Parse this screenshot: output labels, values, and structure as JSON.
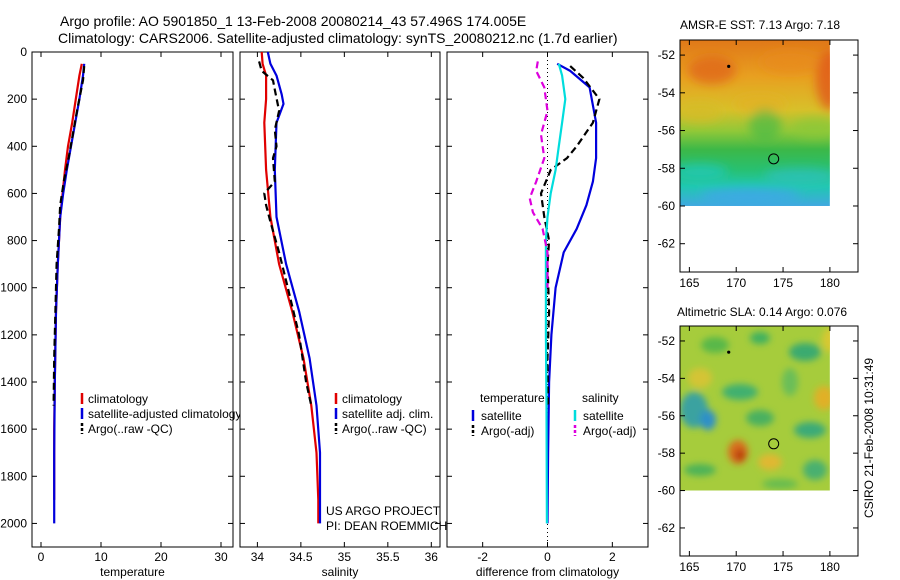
{
  "title": {
    "line1": "Argo profile: AO 5901850_1 13-Feb-2008 20080214_43 57.496S 174.005E",
    "line2": "Climatology: CARS2006. Satellite-adjusted climatology: synTS_20080212.nc (1.7d earlier)"
  },
  "credits": {
    "project": "US ARGO PROJECT",
    "pi": "PI: DEAN ROEMMICH"
  },
  "side_stamp": "CSIRO 21-Feb-2008 10:31:49",
  "colors": {
    "red": "#e00000",
    "blue": "#0000dd",
    "black": "#000000",
    "cyan": "#00dddd",
    "magenta": "#dd00dd"
  },
  "chart_data": [
    {
      "id": "temperature",
      "type": "line",
      "xlabel": "temperature",
      "xlim": [
        -1.5,
        32
      ],
      "ylim": [
        2100,
        0
      ],
      "xticks": [
        0,
        10,
        20,
        30
      ],
      "yticks": [
        0,
        200,
        400,
        600,
        800,
        1000,
        1200,
        1400,
        1600,
        1800,
        2000
      ],
      "legend": [
        {
          "label": "climatology",
          "color": "red",
          "dash": false
        },
        {
          "label": "satellite-adjusted climatology",
          "color": "blue",
          "dash": false
        },
        {
          "label": "Argo(..raw -QC)",
          "color": "black",
          "dash": true
        }
      ],
      "series": [
        {
          "name": "climatology",
          "color": "red",
          "points": [
            [
              6.8,
              50
            ],
            [
              6.4,
              100
            ],
            [
              5.8,
              200
            ],
            [
              5.2,
              300
            ],
            [
              4.5,
              400
            ],
            [
              4.0,
              500
            ],
            [
              3.6,
              600
            ],
            [
              3.2,
              700
            ],
            [
              2.8,
              900
            ],
            [
              2.5,
              1100
            ],
            [
              2.3,
              1400
            ],
            [
              2.2,
              1600
            ],
            [
              2.2,
              1900
            ]
          ]
        },
        {
          "name": "satellite-adjusted climatology",
          "color": "blue",
          "points": [
            [
              7.2,
              50
            ],
            [
              7.0,
              100
            ],
            [
              6.4,
              200
            ],
            [
              5.7,
              300
            ],
            [
              5.0,
              400
            ],
            [
              4.3,
              500
            ],
            [
              3.7,
              600
            ],
            [
              3.2,
              700
            ],
            [
              2.8,
              900
            ],
            [
              2.5,
              1100
            ],
            [
              2.3,
              1400
            ],
            [
              2.2,
              1700
            ],
            [
              2.2,
              2000
            ]
          ]
        },
        {
          "name": "Argo(..raw -QC)",
          "color": "black",
          "dash": true,
          "points": [
            [
              7.2,
              60
            ],
            [
              7.0,
              120
            ],
            [
              6.0,
              250
            ],
            [
              5.3,
              350
            ],
            [
              4.6,
              450
            ],
            [
              3.8,
              550
            ],
            [
              3.2,
              650
            ],
            [
              3.0,
              750
            ],
            [
              2.6,
              900
            ],
            [
              2.4,
              1100
            ],
            [
              2.2,
              1300
            ],
            [
              2.1,
              1500
            ]
          ]
        }
      ]
    },
    {
      "id": "salinity",
      "type": "line",
      "xlabel": "salinity",
      "xlim": [
        33.8,
        36.1
      ],
      "ylim": [
        2100,
        0
      ],
      "xticks": [
        34,
        34.5,
        35,
        35.5,
        36
      ],
      "yticks": [
        0,
        200,
        400,
        600,
        800,
        1000,
        1200,
        1400,
        1600,
        1800,
        2000
      ],
      "legend": [
        {
          "label": "climatology",
          "color": "red",
          "dash": false
        },
        {
          "label": "satellite adj. clim.",
          "color": "blue",
          "dash": false
        },
        {
          "label": "Argo(..raw -QC)",
          "color": "black",
          "dash": true
        }
      ],
      "series": [
        {
          "name": "climatology",
          "color": "red",
          "points": [
            [
              34.05,
              0
            ],
            [
              34.06,
              50
            ],
            [
              34.1,
              100
            ],
            [
              34.1,
              200
            ],
            [
              34.08,
              300
            ],
            [
              34.1,
              500
            ],
            [
              34.15,
              700
            ],
            [
              34.25,
              900
            ],
            [
              34.4,
              1100
            ],
            [
              34.53,
              1300
            ],
            [
              34.62,
              1500
            ],
            [
              34.68,
              1700
            ],
            [
              34.7,
              1900
            ],
            [
              34.7,
              2000
            ]
          ]
        },
        {
          "name": "satellite adj. clim.",
          "color": "blue",
          "points": [
            [
              34.12,
              0
            ],
            [
              34.15,
              50
            ],
            [
              34.22,
              100
            ],
            [
              34.28,
              180
            ],
            [
              34.3,
              220
            ],
            [
              34.22,
              300
            ],
            [
              34.2,
              500
            ],
            [
              34.22,
              700
            ],
            [
              34.33,
              900
            ],
            [
              34.48,
              1100
            ],
            [
              34.6,
              1300
            ],
            [
              34.68,
              1500
            ],
            [
              34.72,
              1700
            ],
            [
              34.72,
              2000
            ]
          ]
        },
        {
          "name": "Argo(..raw -QC)",
          "color": "black",
          "dash": true,
          "points": [
            [
              34.02,
              40
            ],
            [
              34.05,
              80
            ],
            [
              34.18,
              120
            ],
            [
              34.2,
              160
            ],
            [
              34.25,
              250
            ],
            [
              34.2,
              330
            ],
            [
              34.22,
              400
            ],
            [
              34.18,
              450
            ],
            [
              34.2,
              550
            ],
            [
              34.08,
              600
            ],
            [
              34.1,
              650
            ],
            [
              34.15,
              720
            ],
            [
              34.25,
              850
            ],
            [
              34.35,
              1000
            ],
            [
              34.48,
              1200
            ],
            [
              34.56,
              1400
            ],
            [
              34.62,
              1500
            ]
          ]
        }
      ]
    },
    {
      "id": "difference",
      "type": "line",
      "xlabel": "difference from climatology",
      "xlim": [
        -3.1,
        3.1
      ],
      "ylim": [
        2100,
        0
      ],
      "xticks": [
        -2,
        0,
        2
      ],
      "yticks": [
        0,
        200,
        400,
        600,
        800,
        1000,
        1200,
        1400,
        1600,
        1800,
        2000
      ],
      "legend_headers": {
        "temperature": "temperature",
        "salinity": "salinity"
      },
      "legend": [
        {
          "label": "satellite",
          "color": "blue",
          "dash": false,
          "group": "temperature"
        },
        {
          "label": "Argo(-adj)",
          "color": "black",
          "dash": true,
          "group": "temperature"
        },
        {
          "label": "satellite",
          "color": "cyan",
          "dash": false,
          "group": "salinity"
        },
        {
          "label": "Argo(-adj)",
          "color": "magenta",
          "dash": true,
          "group": "salinity"
        }
      ],
      "series": [
        {
          "name": "temperature satellite",
          "color": "blue",
          "points": [
            [
              0.3,
              50
            ],
            [
              0.7,
              80
            ],
            [
              1.3,
              150
            ],
            [
              1.5,
              300
            ],
            [
              1.5,
              450
            ],
            [
              1.4,
              550
            ],
            [
              1.2,
              650
            ],
            [
              0.9,
              750
            ],
            [
              0.5,
              850
            ],
            [
              0.25,
              1000
            ],
            [
              0.12,
              1200
            ],
            [
              0.05,
              1400
            ],
            [
              0.02,
              1700
            ],
            [
              0.0,
              2000
            ]
          ]
        },
        {
          "name": "temperature Argo(-adj)",
          "color": "black",
          "dash": true,
          "points": [
            [
              0.7,
              60
            ],
            [
              1.1,
              110
            ],
            [
              1.6,
              200
            ],
            [
              1.4,
              300
            ],
            [
              0.9,
              400
            ],
            [
              0.6,
              450
            ],
            [
              0.1,
              500
            ],
            [
              -0.2,
              600
            ],
            [
              -0.1,
              700
            ],
            [
              0.05,
              800
            ],
            [
              0.0,
              900
            ],
            [
              0.05,
              1100
            ],
            [
              0.0,
              1300
            ],
            [
              0.02,
              1500
            ]
          ]
        },
        {
          "name": "salinity satellite",
          "color": "cyan",
          "points": [
            [
              0.35,
              50
            ],
            [
              0.45,
              100
            ],
            [
              0.55,
              200
            ],
            [
              0.45,
              300
            ],
            [
              0.35,
              400
            ],
            [
              0.25,
              500
            ],
            [
              0.1,
              600
            ],
            [
              0.0,
              700
            ],
            [
              -0.05,
              800
            ],
            [
              -0.05,
              1000
            ],
            [
              -0.05,
              1200
            ],
            [
              -0.03,
              1500
            ],
            [
              -0.02,
              2000
            ]
          ]
        },
        {
          "name": "salinity Argo(-adj)",
          "color": "magenta",
          "dash": true,
          "points": [
            [
              -0.3,
              40
            ],
            [
              -0.35,
              80
            ],
            [
              -0.1,
              150
            ],
            [
              0.0,
              250
            ],
            [
              -0.2,
              350
            ],
            [
              -0.15,
              400
            ],
            [
              -0.1,
              450
            ],
            [
              -0.35,
              550
            ],
            [
              -0.55,
              620
            ],
            [
              -0.45,
              680
            ],
            [
              -0.15,
              750
            ],
            [
              0.0,
              850
            ],
            [
              0.0,
              1000
            ]
          ]
        }
      ]
    },
    {
      "id": "amsre-sst",
      "type": "heatmap",
      "title": "AMSR-E SST: 7.13 Argo: 7.18",
      "xlim": [
        164,
        183
      ],
      "ylim": [
        -63.5,
        -51.2
      ],
      "xticks": [
        165,
        170,
        175,
        180
      ],
      "yticks": [
        -52,
        -54,
        -56,
        -58,
        -60,
        -62
      ],
      "field_extent": {
        "lon": [
          164,
          180
        ],
        "lat": [
          -60,
          -51.2
        ]
      },
      "argo_marker": {
        "lon": 174.0,
        "lat": -57.5
      },
      "small_marker": {
        "lon": 169.2,
        "lat": -52.6
      }
    },
    {
      "id": "altimetric-sla",
      "type": "heatmap",
      "title": "Altimetric SLA: 0.14 Argo: 0.076",
      "xlim": [
        164,
        183
      ],
      "ylim": [
        -63.5,
        -51.2
      ],
      "xticks": [
        165,
        170,
        175,
        180
      ],
      "yticks": [
        -52,
        -54,
        -56,
        -58,
        -60,
        -62
      ],
      "field_extent": {
        "lon": [
          164,
          180
        ],
        "lat": [
          -60,
          -51.2
        ]
      },
      "argo_marker": {
        "lon": 174.0,
        "lat": -57.5
      },
      "small_marker": {
        "lon": 169.2,
        "lat": -52.6
      }
    }
  ]
}
